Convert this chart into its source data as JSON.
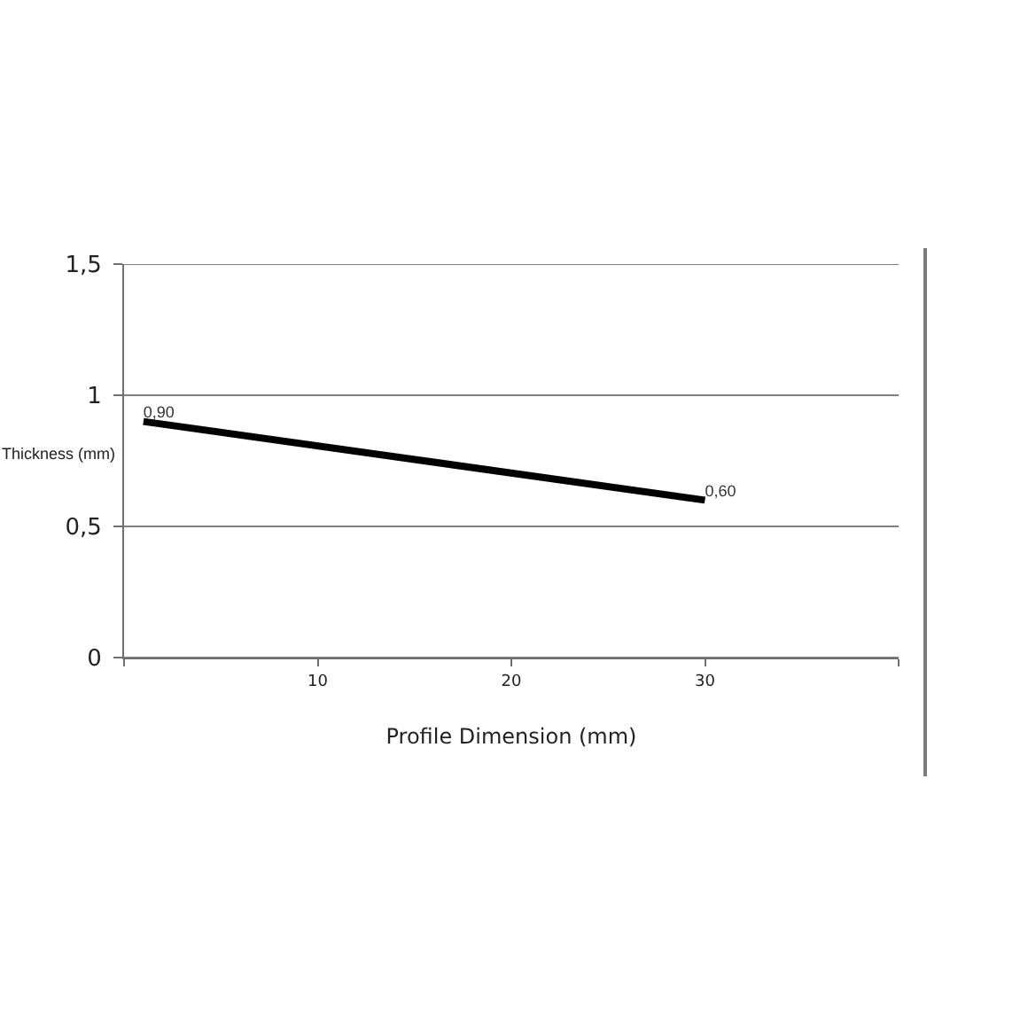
{
  "chart_data": {
    "type": "line",
    "xlabel": "Profile Dimension (mm)",
    "ylabel": "Thickness (mm)",
    "x": [
      1,
      30
    ],
    "values": [
      0.9,
      0.6
    ],
    "value_labels": [
      "0,90",
      "0,60"
    ],
    "color": "#000000",
    "xlim": [
      0,
      40
    ],
    "xticks": [
      {
        "value": 0,
        "label": null
      },
      10,
      20,
      30,
      {
        "value": 40,
        "label": null
      }
    ],
    "ylim": [
      0,
      1.5
    ],
    "yticks": [
      0,
      {
        "value": 0.5,
        "label": "0,5"
      },
      1,
      {
        "value": 1.5,
        "label": "1,5"
      }
    ],
    "grid": "y",
    "marker": "none",
    "line_style": "solid"
  }
}
